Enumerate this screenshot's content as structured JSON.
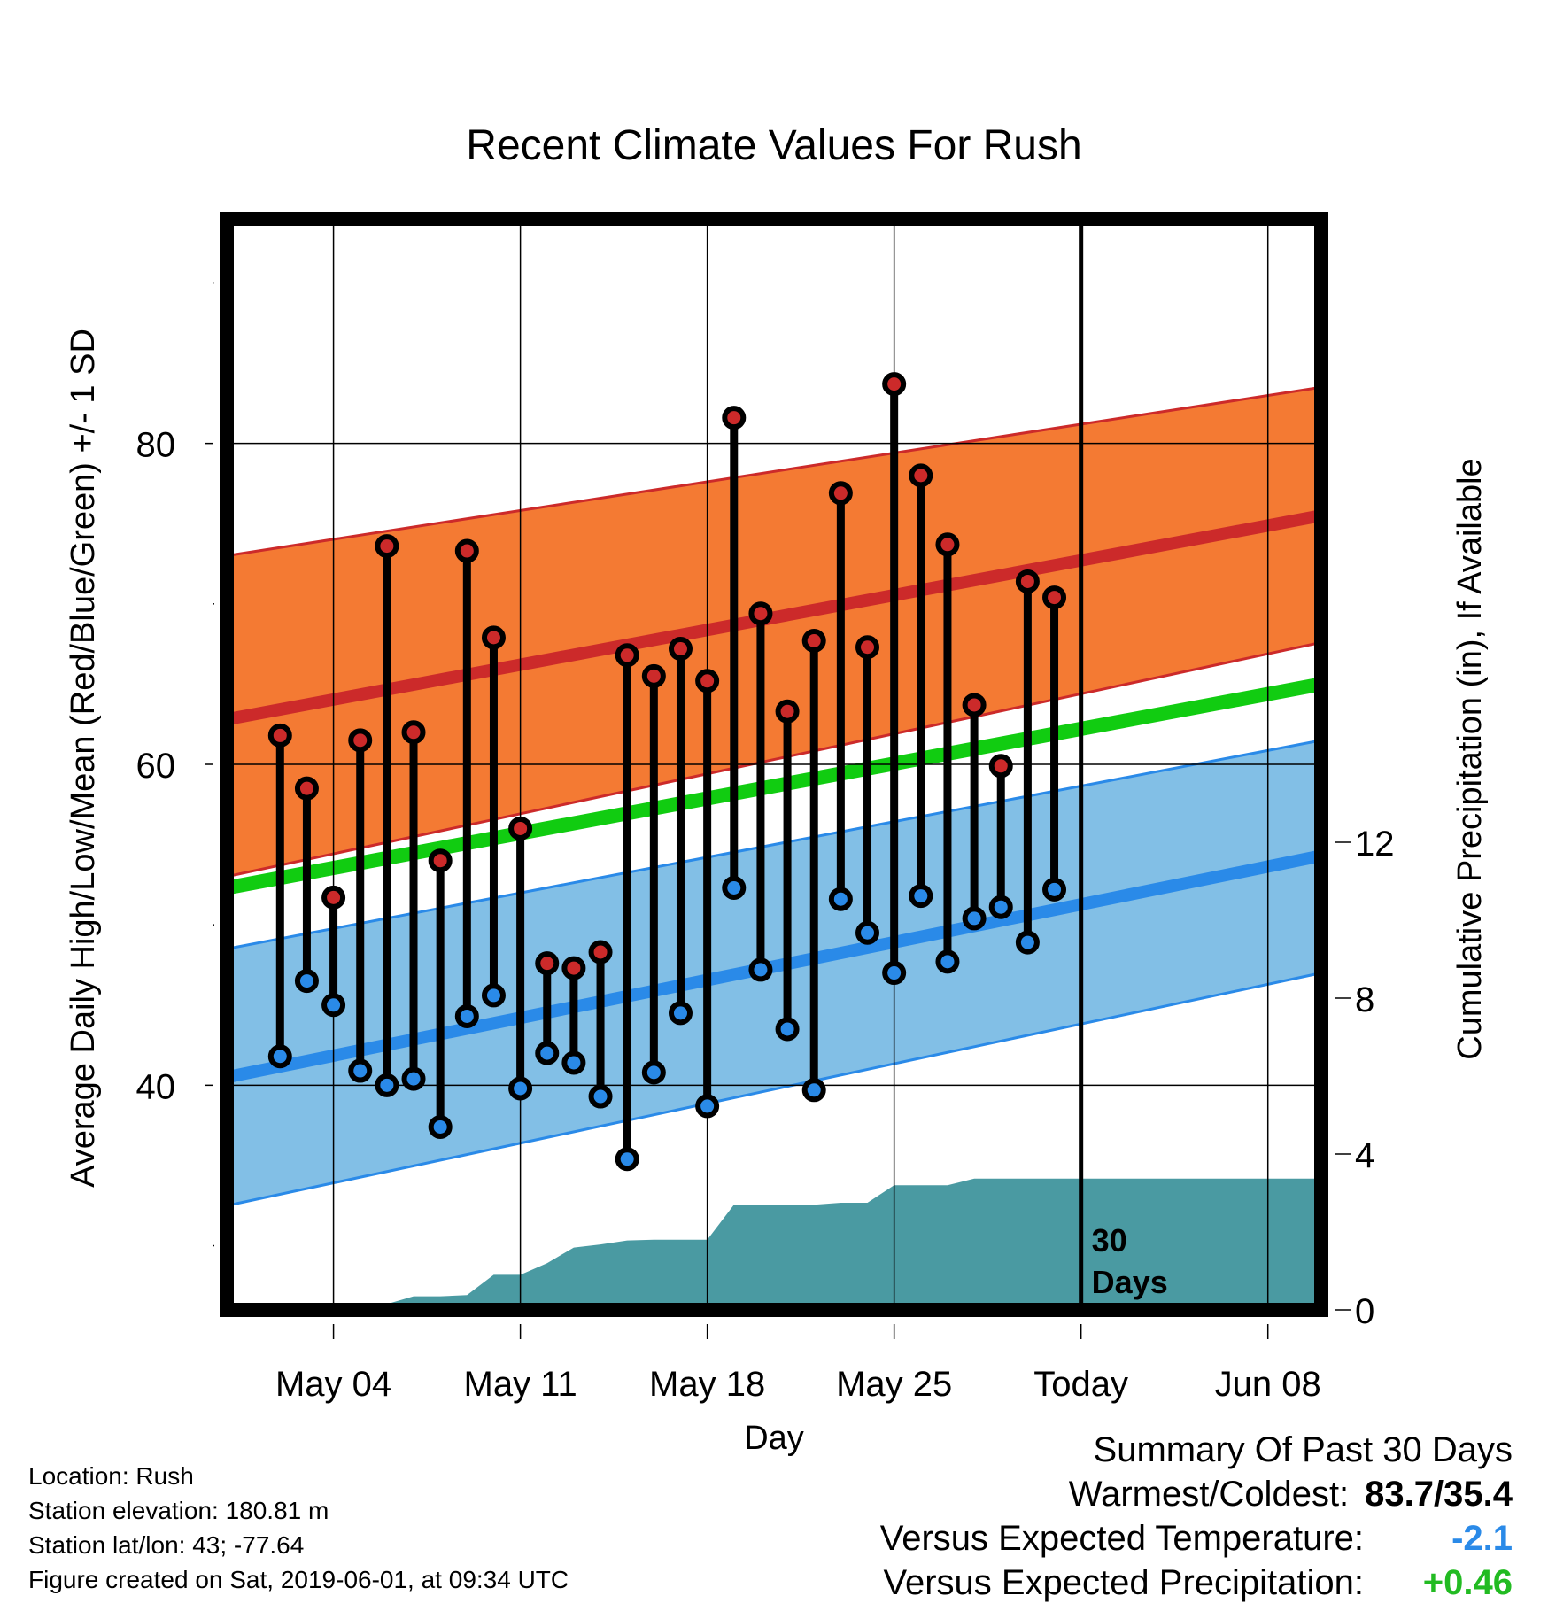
{
  "chart_data": {
    "type": "line",
    "title": "Recent Climate Values For Rush",
    "xlabel": "Day",
    "ylabel": "Average Daily High/Low/Mean (Red/Blue/Green) +/- 1 SD",
    "ylabel_right": "Cumulative Precipitation (in), If Available",
    "x_tick_labels": [
      "May 04",
      "May 11",
      "May 18",
      "May 25",
      "Today",
      "Jun 08"
    ],
    "y_ticks_left": [
      "40",
      "60",
      "80"
    ],
    "y_ticks_right": [
      "0",
      "4",
      "8",
      "12"
    ],
    "ylim": [
      26,
      94
    ],
    "ylim_right": [
      0,
      28
    ],
    "x_range": [
      "2019-04-30",
      "2019-06-10"
    ],
    "today": "2019-06-01",
    "today_annotation": [
      "30",
      "Days"
    ],
    "normals": {
      "dates": [
        "2019-04-30",
        "2019-06-10"
      ],
      "high_mean": [
        62.8,
        75.5
      ],
      "high_upper": [
        73.0,
        83.5
      ],
      "high_lower": [
        53.0,
        67.6
      ],
      "low_mean": [
        40.5,
        54.3
      ],
      "low_upper": [
        48.5,
        61.5
      ],
      "low_lower": [
        32.5,
        47.0
      ],
      "mean": [
        52.3,
        65.0
      ]
    },
    "series": [
      {
        "name": "High",
        "color": "#cc2a2a",
        "dates": [
          "2019-05-02",
          "2019-05-03",
          "2019-05-04",
          "2019-05-05",
          "2019-05-06",
          "2019-05-07",
          "2019-05-08",
          "2019-05-09",
          "2019-05-10",
          "2019-05-11",
          "2019-05-12",
          "2019-05-13",
          "2019-05-14",
          "2019-05-15",
          "2019-05-16",
          "2019-05-17",
          "2019-05-18",
          "2019-05-19",
          "2019-05-20",
          "2019-05-21",
          "2019-05-22",
          "2019-05-23",
          "2019-05-24",
          "2019-05-25",
          "2019-05-26",
          "2019-05-27",
          "2019-05-28",
          "2019-05-29",
          "2019-05-30",
          "2019-05-31"
        ],
        "values": [
          61.8,
          58.5,
          51.7,
          61.5,
          73.6,
          62.0,
          54.0,
          73.3,
          67.9,
          56.0,
          47.6,
          47.3,
          48.3,
          66.8,
          65.5,
          67.2,
          65.2,
          81.6,
          69.4,
          63.3,
          67.7,
          76.9,
          67.3,
          83.7,
          78.0,
          73.7,
          63.7,
          59.9,
          71.4,
          70.4
        ]
      },
      {
        "name": "Low",
        "color": "#2a8ae8",
        "dates": [
          "2019-05-02",
          "2019-05-03",
          "2019-05-04",
          "2019-05-05",
          "2019-05-06",
          "2019-05-07",
          "2019-05-08",
          "2019-05-09",
          "2019-05-10",
          "2019-05-11",
          "2019-05-12",
          "2019-05-13",
          "2019-05-14",
          "2019-05-15",
          "2019-05-16",
          "2019-05-17",
          "2019-05-18",
          "2019-05-19",
          "2019-05-20",
          "2019-05-21",
          "2019-05-22",
          "2019-05-23",
          "2019-05-24",
          "2019-05-25",
          "2019-05-26",
          "2019-05-27",
          "2019-05-28",
          "2019-05-29",
          "2019-05-30",
          "2019-05-31"
        ],
        "values": [
          41.8,
          46.5,
          45.0,
          40.9,
          40.0,
          40.4,
          37.4,
          44.3,
          45.6,
          39.8,
          42.0,
          41.4,
          39.3,
          35.4,
          40.8,
          44.5,
          38.7,
          52.3,
          47.2,
          43.5,
          39.7,
          51.6,
          49.5,
          47.0,
          51.8,
          47.7,
          50.4,
          51.1,
          48.9,
          52.2
        ]
      },
      {
        "name": "Cumulative Precipitation",
        "color": "#4a9aa2",
        "dates": [
          "2019-05-01",
          "2019-05-02",
          "2019-05-03",
          "2019-05-04",
          "2019-05-05",
          "2019-05-06",
          "2019-05-07",
          "2019-05-08",
          "2019-05-09",
          "2019-05-10",
          "2019-05-11",
          "2019-05-12",
          "2019-05-13",
          "2019-05-14",
          "2019-05-15",
          "2019-05-16",
          "2019-05-17",
          "2019-05-18",
          "2019-05-19",
          "2019-05-20",
          "2019-05-21",
          "2019-05-22",
          "2019-05-23",
          "2019-05-24",
          "2019-05-25",
          "2019-05-26",
          "2019-05-27",
          "2019-05-28",
          "2019-05-29",
          "2019-05-30",
          "2019-05-31",
          "2019-06-01",
          "2019-06-10"
        ],
        "values": [
          0.0,
          0.0,
          0.15,
          0.15,
          0.15,
          0.15,
          0.35,
          0.35,
          0.38,
          0.9,
          0.9,
          1.2,
          1.6,
          1.68,
          1.78,
          1.8,
          1.8,
          1.8,
          2.7,
          2.7,
          2.7,
          2.7,
          2.75,
          2.75,
          3.2,
          3.2,
          3.2,
          3.37,
          3.37,
          3.37,
          3.37,
          3.37,
          3.37
        ]
      }
    ]
  },
  "footer": {
    "location": "Location: Rush",
    "elevation": "Station elevation: 180.81 m",
    "latlon": "Station lat/lon: 43; -77.64",
    "created": "Figure created on Sat, 2019-06-01, at 09:34 UTC"
  },
  "summary": {
    "title": "Summary Of Past 30 Days",
    "warmest_coldest_label": "Warmest/Coldest:",
    "warmest_coldest_value": "83.7/35.4",
    "temp_label": "Versus Expected Temperature:",
    "temp_value": "-2.1",
    "temp_color": "#2a8ae8",
    "precip_label": "Versus Expected Precipitation:",
    "precip_value": "+0.46",
    "precip_color": "#22bb22"
  },
  "colors": {
    "high_band": "#f47a33",
    "high_line": "#cc2a2a",
    "low_band": "#82bfe6",
    "low_line": "#2a8ae8",
    "mean_line": "#11cc11",
    "precip_fill": "#4a9aa2"
  }
}
